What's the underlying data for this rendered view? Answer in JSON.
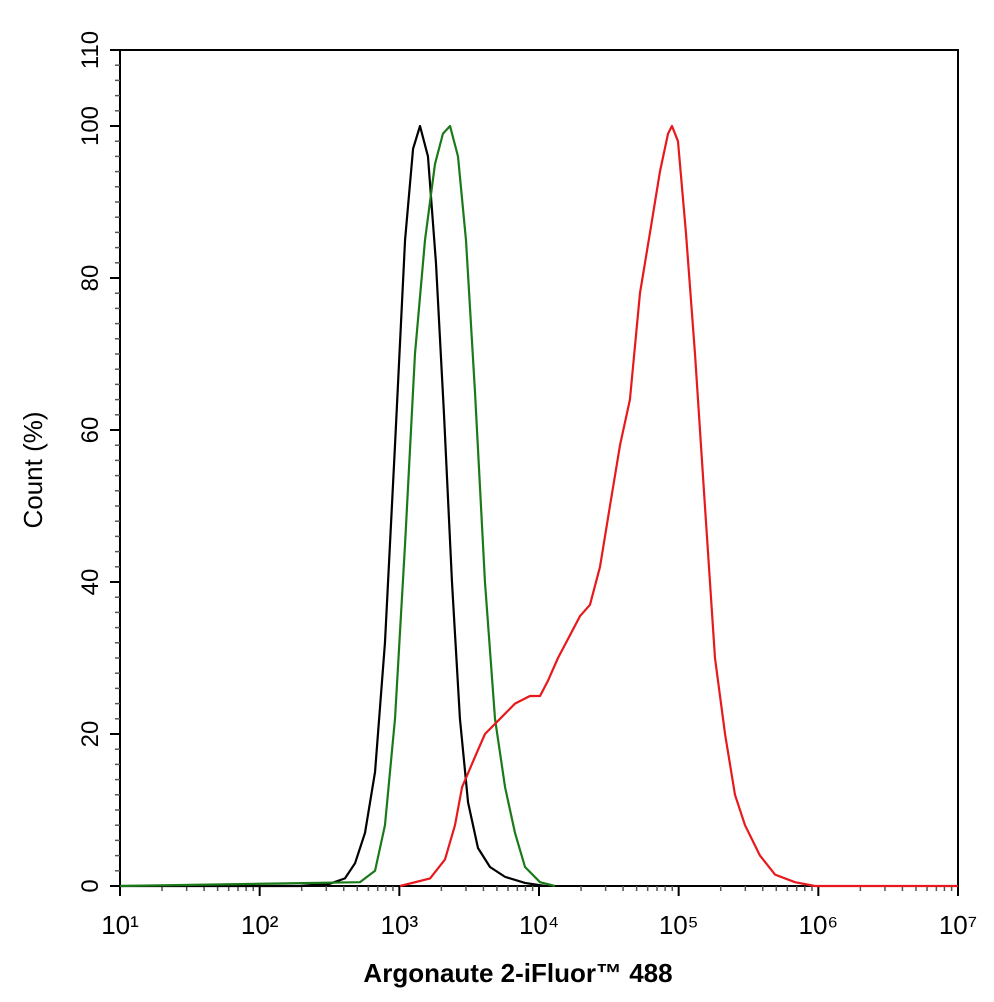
{
  "chart_data": {
    "type": "line",
    "xlabel": "Argonaute 2-iFluor™ 488",
    "ylabel": "Count  (%)",
    "xscale": "log",
    "xlim": [
      10,
      10000000
    ],
    "xticks": [
      {
        "value": 10,
        "label": "10¹"
      },
      {
        "value": 100,
        "label": "10²"
      },
      {
        "value": 1000,
        "label": "10³"
      },
      {
        "value": 10000,
        "label": "10⁴"
      },
      {
        "value": 100000,
        "label": "10⁵"
      },
      {
        "value": 1000000,
        "label": "10⁶"
      },
      {
        "value": 10000000,
        "label": "10⁷"
      }
    ],
    "ylim": [
      0,
      110
    ],
    "yticks": [
      0,
      20,
      40,
      60,
      80,
      100,
      110
    ],
    "grid": false,
    "series": [
      {
        "color": "#000000",
        "x": [
          10,
          195,
          319,
          408,
          482,
          568,
          670,
          789,
          931,
          1099,
          1254,
          1406,
          1603,
          1829,
          2089,
          2382,
          2716,
          3105,
          3656,
          4457,
          5715,
          7943,
          11040
        ],
        "values": [
          0,
          0,
          0.3,
          1,
          3,
          7,
          15,
          32,
          58,
          85,
          97,
          100,
          96,
          82,
          62,
          40,
          22,
          11,
          5,
          2.5,
          1.2,
          0.4,
          0
        ]
      },
      {
        "color": "#1a7a1a",
        "x": [
          10,
          522,
          670,
          789,
          931,
          1099,
          1294,
          1527,
          1800,
          2053,
          2307,
          2630,
          3000,
          3481,
          4103,
          4842,
          5715,
          6730,
          7943,
          10170,
          13000
        ],
        "values": [
          0,
          0.5,
          2,
          8,
          22,
          45,
          70,
          85,
          95,
          99,
          100,
          96,
          85,
          65,
          40,
          22,
          13,
          7,
          2.5,
          0.5,
          0
        ]
      },
      {
        "color": "#e8191c",
        "x": [
          1012,
          1660,
          2123,
          2503,
          2812,
          3483,
          4103,
          5257,
          6730,
          8610,
          10170,
          11590,
          13670,
          16670,
          19640,
          23170,
          27340,
          32210,
          38020,
          44770,
          52840,
          62370,
          73450,
          83950,
          89540,
          98850,
          112700,
          130900,
          154200,
          182000,
          214800,
          253100,
          298500,
          382100,
          489800,
          680800,
          946200,
          10000000
        ],
        "values": [
          0,
          1,
          3.5,
          8,
          13,
          17,
          20,
          22,
          24,
          25,
          25,
          27,
          30,
          33,
          35.5,
          37,
          42,
          50,
          58,
          64,
          78,
          86,
          94,
          99,
          100,
          98,
          86,
          70,
          50,
          30,
          20,
          12,
          8,
          4,
          1.5,
          0.5,
          0,
          0
        ]
      }
    ]
  }
}
